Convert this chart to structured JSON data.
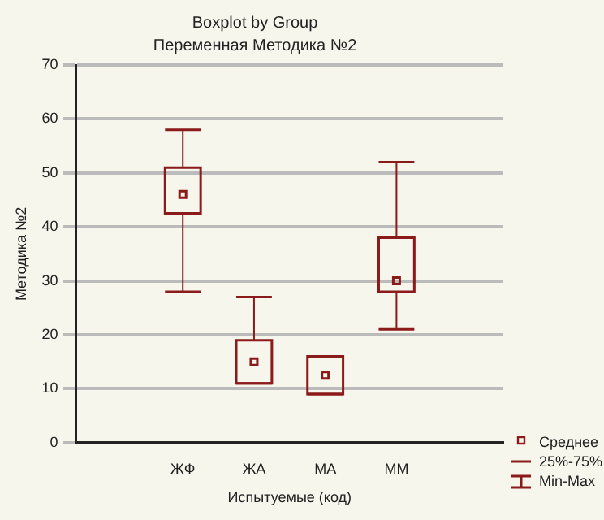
{
  "chart_data": {
    "type": "box",
    "title": "Boxplot by Group",
    "subtitle": "Переменная Методика №2",
    "xlabel": "Испытуемые (код)",
    "ylabel": "Методика №2",
    "categories": [
      null,
      "ЖФ",
      "ЖА",
      "МА",
      "ММ",
      null
    ],
    "boxes": [
      null,
      {
        "low": 28,
        "q1": 42.5,
        "q3": 51,
        "high": 58,
        "mean": 46
      },
      {
        "low": 11,
        "q1": 11,
        "q3": 19,
        "high": 27,
        "mean": 15
      },
      {
        "low": 9,
        "q1": 9,
        "q3": 16,
        "high": 16,
        "mean": 12.5
      },
      {
        "low": 21,
        "q1": 28,
        "q3": 38,
        "high": 52,
        "mean": 30
      },
      null
    ],
    "color": "#8b1a1a",
    "annotations": [
      "Среднее",
      "25%-75%",
      "Min-Max"
    ],
    "ylim": [
      0,
      70
    ],
    "yticks": [
      0,
      10,
      20,
      30,
      40,
      50,
      60,
      70
    ],
    "grid": "y"
  }
}
